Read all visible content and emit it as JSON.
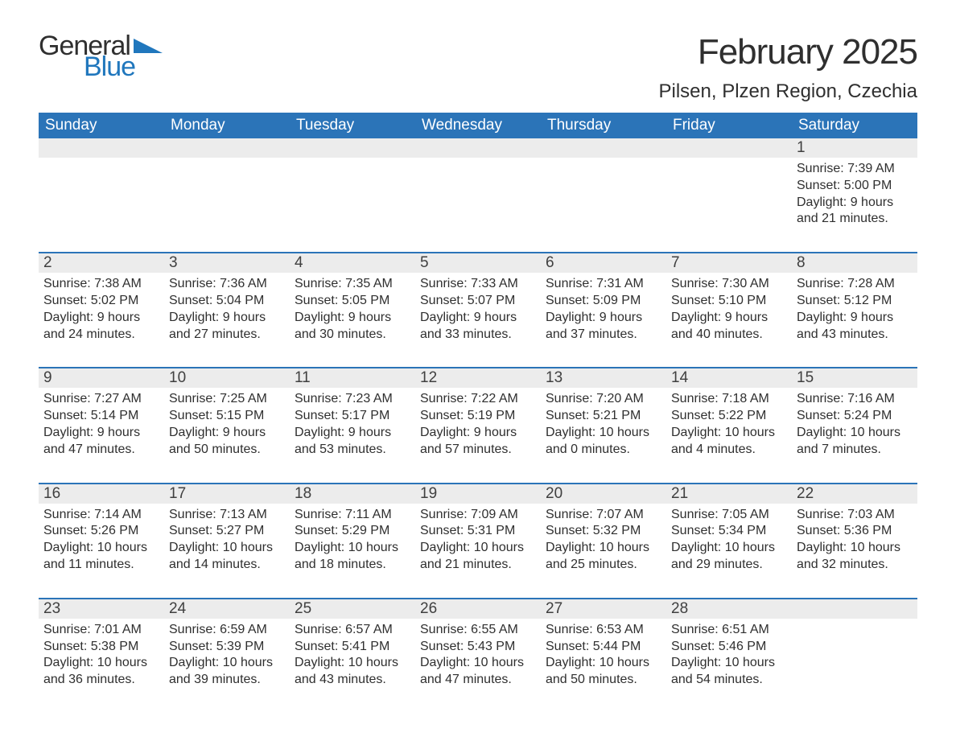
{
  "logo": {
    "part1": "General",
    "part2": "Blue"
  },
  "title": "February 2025",
  "location": "Pilsen, Plzen Region, Czechia",
  "colors": {
    "header_bg": "#2b74b8",
    "header_text": "#ffffff",
    "daynum_bg": "#ececec",
    "text": "#2f2f2f",
    "accent": "#2077bd",
    "page_bg": "#ffffff"
  },
  "typography": {
    "title_fontsize": 44,
    "location_fontsize": 24,
    "dow_fontsize": 19,
    "daynum_fontsize": 19,
    "detail_fontsize": 16
  },
  "days_of_week": [
    "Sunday",
    "Monday",
    "Tuesday",
    "Wednesday",
    "Thursday",
    "Friday",
    "Saturday"
  ],
  "labels": {
    "sunrise": "Sunrise:",
    "sunset": "Sunset:",
    "daylight": "Daylight:"
  },
  "weeks": [
    [
      null,
      null,
      null,
      null,
      null,
      null,
      {
        "n": "1",
        "sunrise": "7:39 AM",
        "sunset": "5:00 PM",
        "dl1": "9 hours",
        "dl2": "and 21 minutes."
      }
    ],
    [
      {
        "n": "2",
        "sunrise": "7:38 AM",
        "sunset": "5:02 PM",
        "dl1": "9 hours",
        "dl2": "and 24 minutes."
      },
      {
        "n": "3",
        "sunrise": "7:36 AM",
        "sunset": "5:04 PM",
        "dl1": "9 hours",
        "dl2": "and 27 minutes."
      },
      {
        "n": "4",
        "sunrise": "7:35 AM",
        "sunset": "5:05 PM",
        "dl1": "9 hours",
        "dl2": "and 30 minutes."
      },
      {
        "n": "5",
        "sunrise": "7:33 AM",
        "sunset": "5:07 PM",
        "dl1": "9 hours",
        "dl2": "and 33 minutes."
      },
      {
        "n": "6",
        "sunrise": "7:31 AM",
        "sunset": "5:09 PM",
        "dl1": "9 hours",
        "dl2": "and 37 minutes."
      },
      {
        "n": "7",
        "sunrise": "7:30 AM",
        "sunset": "5:10 PM",
        "dl1": "9 hours",
        "dl2": "and 40 minutes."
      },
      {
        "n": "8",
        "sunrise": "7:28 AM",
        "sunset": "5:12 PM",
        "dl1": "9 hours",
        "dl2": "and 43 minutes."
      }
    ],
    [
      {
        "n": "9",
        "sunrise": "7:27 AM",
        "sunset": "5:14 PM",
        "dl1": "9 hours",
        "dl2": "and 47 minutes."
      },
      {
        "n": "10",
        "sunrise": "7:25 AM",
        "sunset": "5:15 PM",
        "dl1": "9 hours",
        "dl2": "and 50 minutes."
      },
      {
        "n": "11",
        "sunrise": "7:23 AM",
        "sunset": "5:17 PM",
        "dl1": "9 hours",
        "dl2": "and 53 minutes."
      },
      {
        "n": "12",
        "sunrise": "7:22 AM",
        "sunset": "5:19 PM",
        "dl1": "9 hours",
        "dl2": "and 57 minutes."
      },
      {
        "n": "13",
        "sunrise": "7:20 AM",
        "sunset": "5:21 PM",
        "dl1": "10 hours",
        "dl2": "and 0 minutes."
      },
      {
        "n": "14",
        "sunrise": "7:18 AM",
        "sunset": "5:22 PM",
        "dl1": "10 hours",
        "dl2": "and 4 minutes."
      },
      {
        "n": "15",
        "sunrise": "7:16 AM",
        "sunset": "5:24 PM",
        "dl1": "10 hours",
        "dl2": "and 7 minutes."
      }
    ],
    [
      {
        "n": "16",
        "sunrise": "7:14 AM",
        "sunset": "5:26 PM",
        "dl1": "10 hours",
        "dl2": "and 11 minutes."
      },
      {
        "n": "17",
        "sunrise": "7:13 AM",
        "sunset": "5:27 PM",
        "dl1": "10 hours",
        "dl2": "and 14 minutes."
      },
      {
        "n": "18",
        "sunrise": "7:11 AM",
        "sunset": "5:29 PM",
        "dl1": "10 hours",
        "dl2": "and 18 minutes."
      },
      {
        "n": "19",
        "sunrise": "7:09 AM",
        "sunset": "5:31 PM",
        "dl1": "10 hours",
        "dl2": "and 21 minutes."
      },
      {
        "n": "20",
        "sunrise": "7:07 AM",
        "sunset": "5:32 PM",
        "dl1": "10 hours",
        "dl2": "and 25 minutes."
      },
      {
        "n": "21",
        "sunrise": "7:05 AM",
        "sunset": "5:34 PM",
        "dl1": "10 hours",
        "dl2": "and 29 minutes."
      },
      {
        "n": "22",
        "sunrise": "7:03 AM",
        "sunset": "5:36 PM",
        "dl1": "10 hours",
        "dl2": "and 32 minutes."
      }
    ],
    [
      {
        "n": "23",
        "sunrise": "7:01 AM",
        "sunset": "5:38 PM",
        "dl1": "10 hours",
        "dl2": "and 36 minutes."
      },
      {
        "n": "24",
        "sunrise": "6:59 AM",
        "sunset": "5:39 PM",
        "dl1": "10 hours",
        "dl2": "and 39 minutes."
      },
      {
        "n": "25",
        "sunrise": "6:57 AM",
        "sunset": "5:41 PM",
        "dl1": "10 hours",
        "dl2": "and 43 minutes."
      },
      {
        "n": "26",
        "sunrise": "6:55 AM",
        "sunset": "5:43 PM",
        "dl1": "10 hours",
        "dl2": "and 47 minutes."
      },
      {
        "n": "27",
        "sunrise": "6:53 AM",
        "sunset": "5:44 PM",
        "dl1": "10 hours",
        "dl2": "and 50 minutes."
      },
      {
        "n": "28",
        "sunrise": "6:51 AM",
        "sunset": "5:46 PM",
        "dl1": "10 hours",
        "dl2": "and 54 minutes."
      },
      null
    ]
  ]
}
